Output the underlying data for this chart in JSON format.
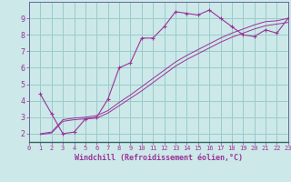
{
  "background_color": "#cce8e8",
  "grid_color": "#99cccc",
  "line_color": "#993399",
  "xlabel": "Windchill (Refroidissement éolien,°C)",
  "xlabel_color": "#993399",
  "tick_color": "#993399",
  "xlim": [
    0,
    23
  ],
  "ylim": [
    1.5,
    10.0
  ],
  "yticks": [
    2,
    3,
    4,
    5,
    6,
    7,
    8,
    9
  ],
  "xticks": [
    0,
    1,
    2,
    3,
    4,
    5,
    6,
    7,
    8,
    9,
    10,
    11,
    12,
    13,
    14,
    15,
    16,
    17,
    18,
    19,
    20,
    21,
    22,
    23
  ],
  "curve1_x": [
    1,
    2,
    3,
    4,
    5,
    6,
    7,
    8,
    9,
    10,
    11,
    12,
    13,
    14,
    15,
    16,
    17,
    18,
    19,
    20,
    21,
    22,
    23
  ],
  "curve1_y": [
    4.4,
    3.2,
    2.0,
    2.1,
    2.9,
    3.0,
    4.1,
    6.0,
    6.3,
    7.8,
    7.8,
    8.5,
    9.4,
    9.3,
    9.2,
    9.5,
    9.0,
    8.5,
    8.0,
    7.9,
    8.3,
    8.1,
    9.0
  ],
  "curve2_x": [
    1,
    2,
    3,
    4,
    5,
    6,
    7,
    8,
    9,
    10,
    11,
    12,
    13,
    14,
    15,
    16,
    17,
    18,
    19,
    20,
    21,
    22,
    23
  ],
  "curve2_y": [
    2.0,
    2.1,
    2.85,
    2.95,
    3.0,
    3.1,
    3.4,
    3.9,
    4.35,
    4.85,
    5.35,
    5.85,
    6.35,
    6.75,
    7.1,
    7.45,
    7.8,
    8.1,
    8.35,
    8.6,
    8.8,
    8.85,
    9.0
  ],
  "curve3_x": [
    1,
    2,
    3,
    4,
    5,
    6,
    7,
    8,
    9,
    10,
    11,
    12,
    13,
    14,
    15,
    16,
    17,
    18,
    19,
    20,
    21,
    22,
    23
  ],
  "curve3_y": [
    1.95,
    2.05,
    2.75,
    2.85,
    2.9,
    2.95,
    3.25,
    3.7,
    4.15,
    4.6,
    5.1,
    5.6,
    6.1,
    6.5,
    6.85,
    7.2,
    7.55,
    7.85,
    8.1,
    8.35,
    8.55,
    8.65,
    8.75
  ]
}
